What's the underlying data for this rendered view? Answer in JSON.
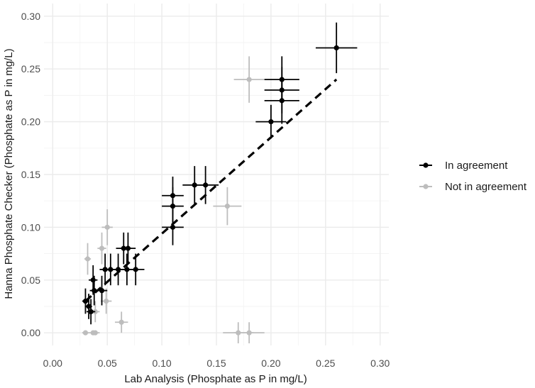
{
  "chart_data": {
    "type": "scatter",
    "title": "",
    "xlabel": "Lab Analysis (Phosphate as P in mg/L)",
    "ylabel": "Hanna Phosphate Checker (Phosphate as P in mg/L)",
    "xlim": [
      -0.008,
      0.308
    ],
    "ylim": [
      -0.012,
      0.312
    ],
    "x_ticks": [
      "0.00",
      "0.05",
      "0.10",
      "0.15",
      "0.20",
      "0.25",
      "0.30"
    ],
    "y_ticks": [
      "0.00",
      "0.05",
      "0.10",
      "0.15",
      "0.20",
      "0.25",
      "0.30"
    ],
    "grid": true,
    "legend_position": "right",
    "colors": {
      "agree": "#000000",
      "disagree": "#bdbdbd",
      "grid": "#ebebeb",
      "fit": "#000000"
    },
    "series": [
      {
        "name": "In agreement",
        "points": [
          {
            "x": 0.03,
            "y": 0.03,
            "xerr": 0.003,
            "yerr": 0.012
          },
          {
            "x": 0.033,
            "y": 0.025,
            "xerr": 0.003,
            "yerr": 0.012
          },
          {
            "x": 0.035,
            "y": 0.02,
            "xerr": 0.004,
            "yerr": 0.012
          },
          {
            "x": 0.037,
            "y": 0.05,
            "xerr": 0.004,
            "yerr": 0.014
          },
          {
            "x": 0.038,
            "y": 0.04,
            "xerr": 0.004,
            "yerr": 0.014
          },
          {
            "x": 0.045,
            "y": 0.04,
            "xerr": 0.005,
            "yerr": 0.014
          },
          {
            "x": 0.048,
            "y": 0.06,
            "xerr": 0.005,
            "yerr": 0.015
          },
          {
            "x": 0.053,
            "y": 0.06,
            "xerr": 0.006,
            "yerr": 0.015
          },
          {
            "x": 0.06,
            "y": 0.06,
            "xerr": 0.006,
            "yerr": 0.015
          },
          {
            "x": 0.065,
            "y": 0.08,
            "xerr": 0.007,
            "yerr": 0.015
          },
          {
            "x": 0.068,
            "y": 0.06,
            "xerr": 0.007,
            "yerr": 0.015
          },
          {
            "x": 0.069,
            "y": 0.08,
            "xerr": 0.007,
            "yerr": 0.015
          },
          {
            "x": 0.076,
            "y": 0.06,
            "xerr": 0.008,
            "yerr": 0.015
          },
          {
            "x": 0.11,
            "y": 0.13,
            "xerr": 0.01,
            "yerr": 0.018
          },
          {
            "x": 0.11,
            "y": 0.12,
            "xerr": 0.01,
            "yerr": 0.018
          },
          {
            "x": 0.11,
            "y": 0.1,
            "xerr": 0.01,
            "yerr": 0.017
          },
          {
            "x": 0.13,
            "y": 0.14,
            "xerr": 0.011,
            "yerr": 0.018
          },
          {
            "x": 0.14,
            "y": 0.14,
            "xerr": 0.012,
            "yerr": 0.018
          },
          {
            "x": 0.2,
            "y": 0.2,
            "xerr": 0.014,
            "yerr": 0.016
          },
          {
            "x": 0.21,
            "y": 0.24,
            "xerr": 0.016,
            "yerr": 0.022
          },
          {
            "x": 0.21,
            "y": 0.23,
            "xerr": 0.016,
            "yerr": 0.022
          },
          {
            "x": 0.21,
            "y": 0.22,
            "xerr": 0.016,
            "yerr": 0.022
          },
          {
            "x": 0.26,
            "y": 0.27,
            "xerr": 0.019,
            "yerr": 0.024
          }
        ]
      },
      {
        "name": "Not in agreement",
        "points": [
          {
            "x": 0.03,
            "y": 0.0,
            "xerr": 0.003,
            "yerr": 0.0
          },
          {
            "x": 0.032,
            "y": 0.07,
            "xerr": 0.003,
            "yerr": 0.015
          },
          {
            "x": 0.037,
            "y": 0.0,
            "xerr": 0.004,
            "yerr": 0.0
          },
          {
            "x": 0.039,
            "y": 0.0,
            "xerr": 0.004,
            "yerr": 0.0
          },
          {
            "x": 0.039,
            "y": 0.02,
            "xerr": 0.004,
            "yerr": 0.01
          },
          {
            "x": 0.045,
            "y": 0.08,
            "xerr": 0.004,
            "yerr": 0.015
          },
          {
            "x": 0.049,
            "y": 0.03,
            "xerr": 0.005,
            "yerr": 0.012
          },
          {
            "x": 0.05,
            "y": 0.1,
            "xerr": 0.005,
            "yerr": 0.017
          },
          {
            "x": 0.063,
            "y": 0.01,
            "xerr": 0.006,
            "yerr": 0.01
          },
          {
            "x": 0.16,
            "y": 0.12,
            "xerr": 0.013,
            "yerr": 0.018
          },
          {
            "x": 0.17,
            "y": 0.0,
            "xerr": 0.014,
            "yerr": 0.01
          },
          {
            "x": 0.18,
            "y": 0.24,
            "xerr": 0.014,
            "yerr": 0.022
          },
          {
            "x": 0.18,
            "y": 0.0,
            "xerr": 0.014,
            "yerr": 0.01
          }
        ]
      }
    ],
    "fit_line": {
      "style": "dashed",
      "x": [
        0.03,
        0.26
      ],
      "y": [
        0.03,
        0.24
      ]
    }
  }
}
